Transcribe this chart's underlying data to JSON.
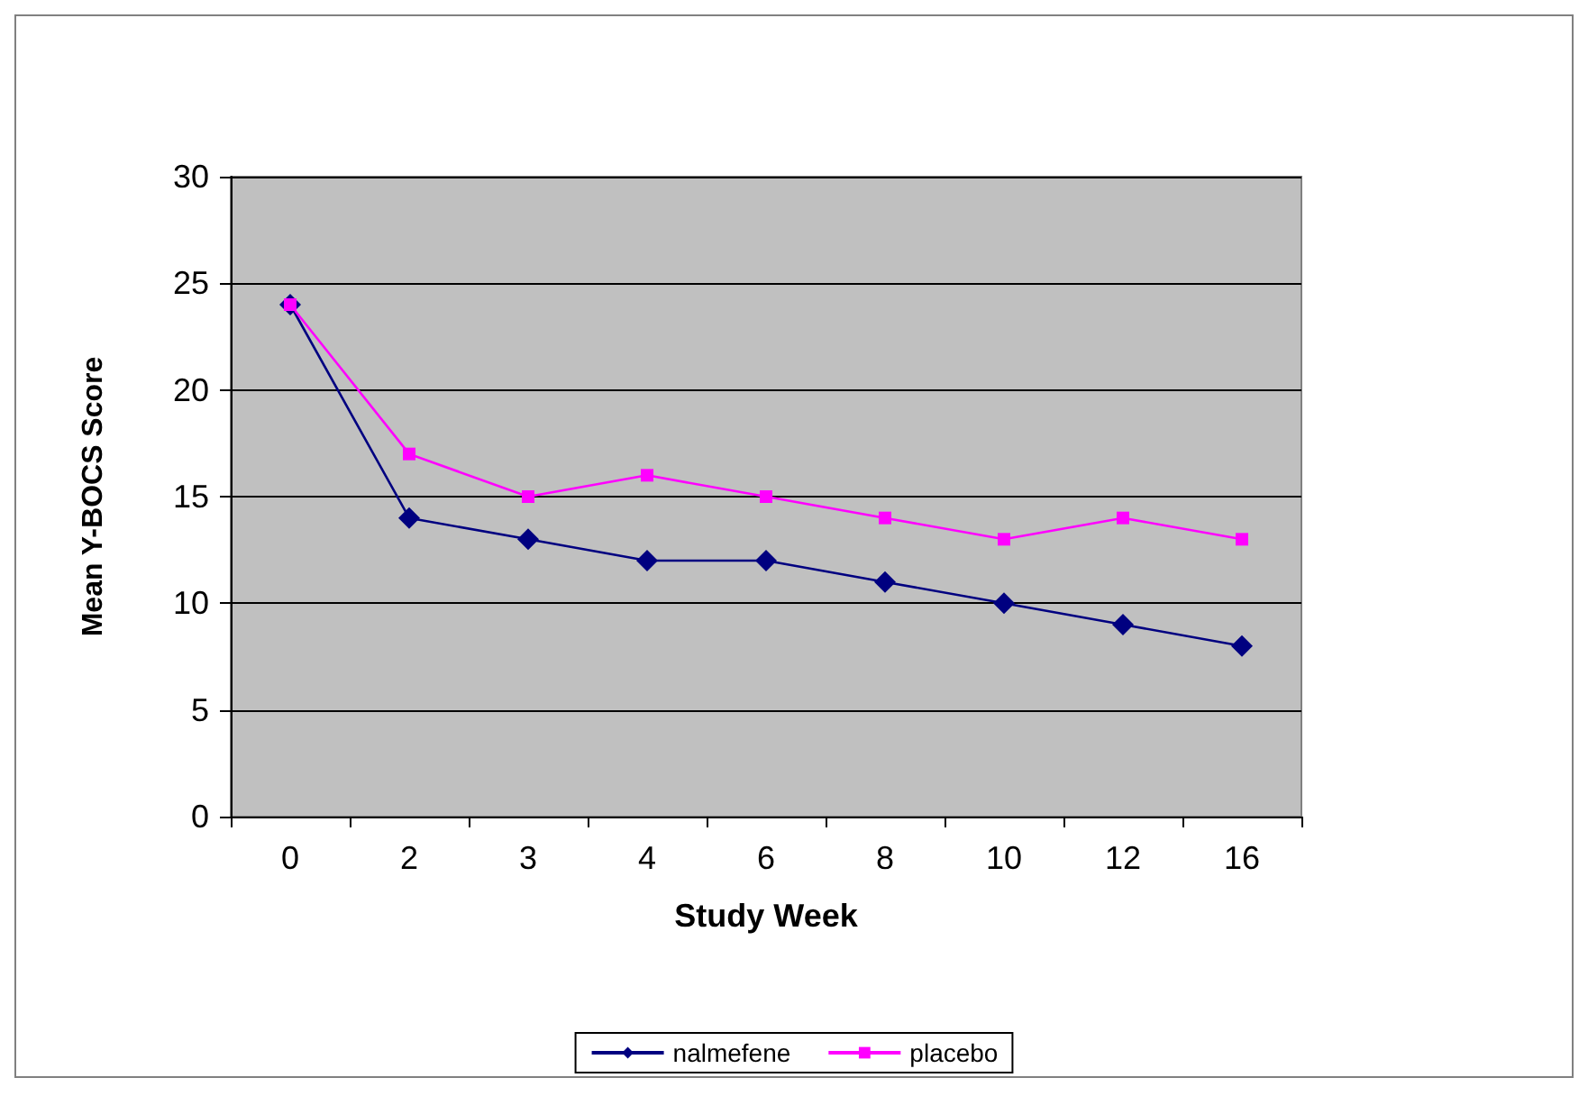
{
  "chart_data": {
    "type": "line",
    "xlabel": "Study Week",
    "ylabel": "Mean Y-BOCS Score",
    "categories": [
      "0",
      "2",
      "3",
      "4",
      "6",
      "8",
      "10",
      "12",
      "16"
    ],
    "series": [
      {
        "name": "nalmefene",
        "color": "#000080",
        "marker": "diamond",
        "values": [
          24,
          14,
          13,
          12,
          12,
          11,
          10,
          9,
          8
        ]
      },
      {
        "name": "placebo",
        "color": "#ff00ff",
        "marker": "square",
        "values": [
          24,
          17,
          15,
          16,
          15,
          14,
          13,
          14,
          13
        ]
      }
    ],
    "ylim": [
      0,
      30
    ],
    "yticks": [
      0,
      5,
      10,
      15,
      20,
      25,
      30
    ],
    "grid": "y",
    "legend": "bottom",
    "line_style": "solid"
  }
}
